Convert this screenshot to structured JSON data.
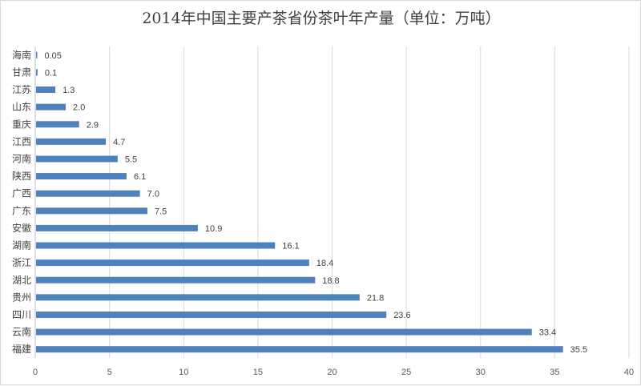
{
  "chart_data": {
    "type": "bar",
    "orientation": "horizontal",
    "title": "2014年中国主要产茶省份茶叶年产量（单位：万吨）",
    "categories": [
      "海南",
      "甘肃",
      "江苏",
      "山东",
      "重庆",
      "江西",
      "河南",
      "陕西",
      "广西",
      "广东",
      "安徽",
      "湖南",
      "浙江",
      "湖北",
      "贵州",
      "四川",
      "云南",
      "福建"
    ],
    "values": [
      0.05,
      0.1,
      1.3,
      2.0,
      2.9,
      4.7,
      5.5,
      6.1,
      7.0,
      7.5,
      10.9,
      16.1,
      18.4,
      18.8,
      21.8,
      23.6,
      33.4,
      35.5
    ],
    "value_labels": [
      "0.05",
      "0.1",
      "1.3",
      "2.0",
      "2.9",
      "4.7",
      "5.5",
      "6.1",
      "7.0",
      "7.5",
      "10.9",
      "16.1",
      "18.4",
      "18.8",
      "21.8",
      "23.6",
      "33.4",
      "35.5"
    ],
    "xlim": [
      0,
      40
    ],
    "x_ticks": [
      "0",
      "5",
      "10",
      "15",
      "20",
      "25",
      "30",
      "35",
      "40"
    ],
    "xlabel": "",
    "ylabel": "",
    "grid": true,
    "legend": "none",
    "bar_color": "#4f81bd"
  }
}
